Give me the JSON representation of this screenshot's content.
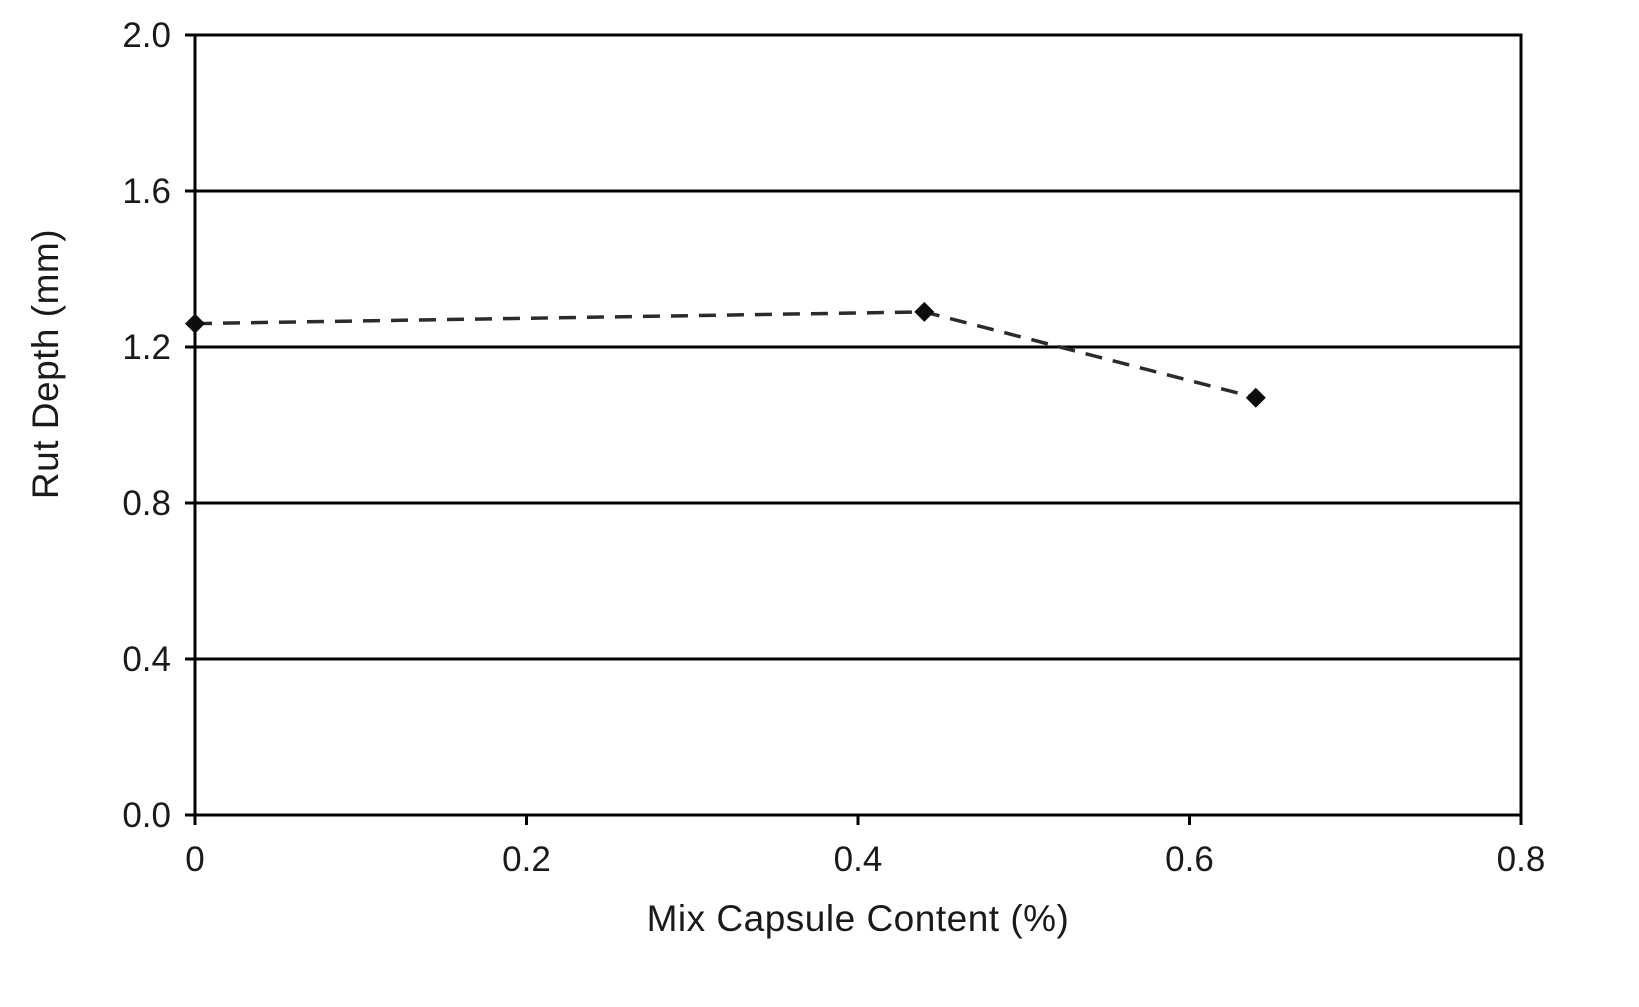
{
  "chart_data": {
    "type": "line",
    "title": "",
    "xlabel": "Mix Capsule Content (%)",
    "ylabel": "Rut Depth (mm)",
    "x": [
      0,
      0.44,
      0.64
    ],
    "y": [
      1.26,
      1.29,
      1.07
    ],
    "series": [
      {
        "name": "Rut Depth",
        "x": [
          0,
          0.44,
          0.64
        ],
        "values": [
          1.26,
          1.29,
          1.07
        ]
      }
    ],
    "xlim": [
      0,
      0.8
    ],
    "ylim": [
      0.0,
      2.0
    ],
    "x_ticks": [
      "0",
      "0.2",
      "0.4",
      "0.6",
      "0.8"
    ],
    "x_tick_values": [
      0,
      0.2,
      0.4,
      0.6,
      0.8
    ],
    "y_ticks": [
      "0.0",
      "0.4",
      "0.8",
      "1.2",
      "1.6",
      "2.0"
    ],
    "y_tick_values": [
      0.0,
      0.4,
      0.8,
      1.2,
      1.6,
      2.0
    ],
    "grid": "horizontal",
    "legend": "none",
    "line_style": "dashed",
    "marker": "diamond",
    "colors": {
      "line": "#2b2b2b",
      "marker": "#0d0d0d",
      "axis": "#000000",
      "text": "#1a1a1a",
      "background": "#ffffff"
    }
  }
}
